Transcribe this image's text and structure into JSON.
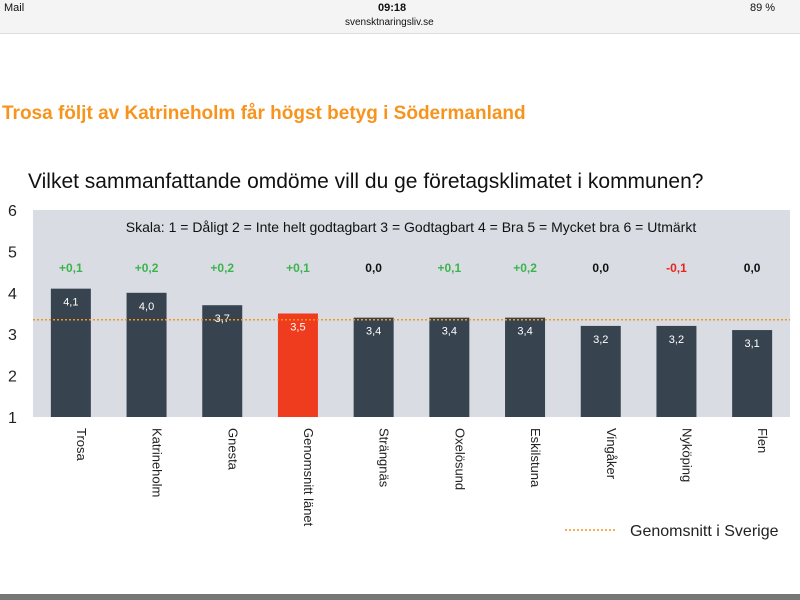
{
  "status_bar": {
    "back_app": "Mail",
    "time": "09:18",
    "url": "svensktnaringsliv.se",
    "battery": "89 %"
  },
  "headline": "Trosa följt av Katrineholm får högst betyg i Södermanland",
  "chart_data": {
    "type": "bar",
    "title": "Vilket sammanfattande omdöme vill du ge företagsklimatet i kommunen?",
    "scale_note": "Skala: 1 = Dåligt   2 = Inte helt godtagbart   3 = Godtagbart   4 = Bra   5 = Mycket bra   6 = Utmärkt",
    "categories": [
      "Trosa",
      "Katrineholm",
      "Gnesta",
      "Genomsnitt länet",
      "Strängnäs",
      "Oxelösund",
      "Eskilstuna",
      "Vingåker",
      "Nyköping",
      "Flen"
    ],
    "values": [
      4.1,
      4.0,
      3.7,
      3.5,
      3.4,
      3.4,
      3.4,
      3.2,
      3.2,
      3.1
    ],
    "value_labels": [
      "4,1",
      "4,0",
      "3,7",
      "3,5",
      "3,4",
      "3,4",
      "3,4",
      "3,2",
      "3,2",
      "3,1"
    ],
    "changes": [
      "+0,1",
      "+0,2",
      "+0,2",
      "+0,1",
      "0,0",
      "+0,1",
      "+0,2",
      "0,0",
      "-0,1",
      "0,0"
    ],
    "ylim": [
      1,
      6
    ],
    "yticks": [
      "1",
      "2",
      "3",
      "4",
      "5",
      "6"
    ],
    "reference_line": {
      "label": "Genomsnitt i Sverige",
      "value": 3.35
    },
    "colors": {
      "bar": "#37434f",
      "highlight": "#f03c1e",
      "positive": "#3cb44b",
      "negative": "#e8231c",
      "neutral": "#111111",
      "reference": "#f7941d",
      "plot_bg": "#d9dde3"
    },
    "highlight_index": 3
  }
}
